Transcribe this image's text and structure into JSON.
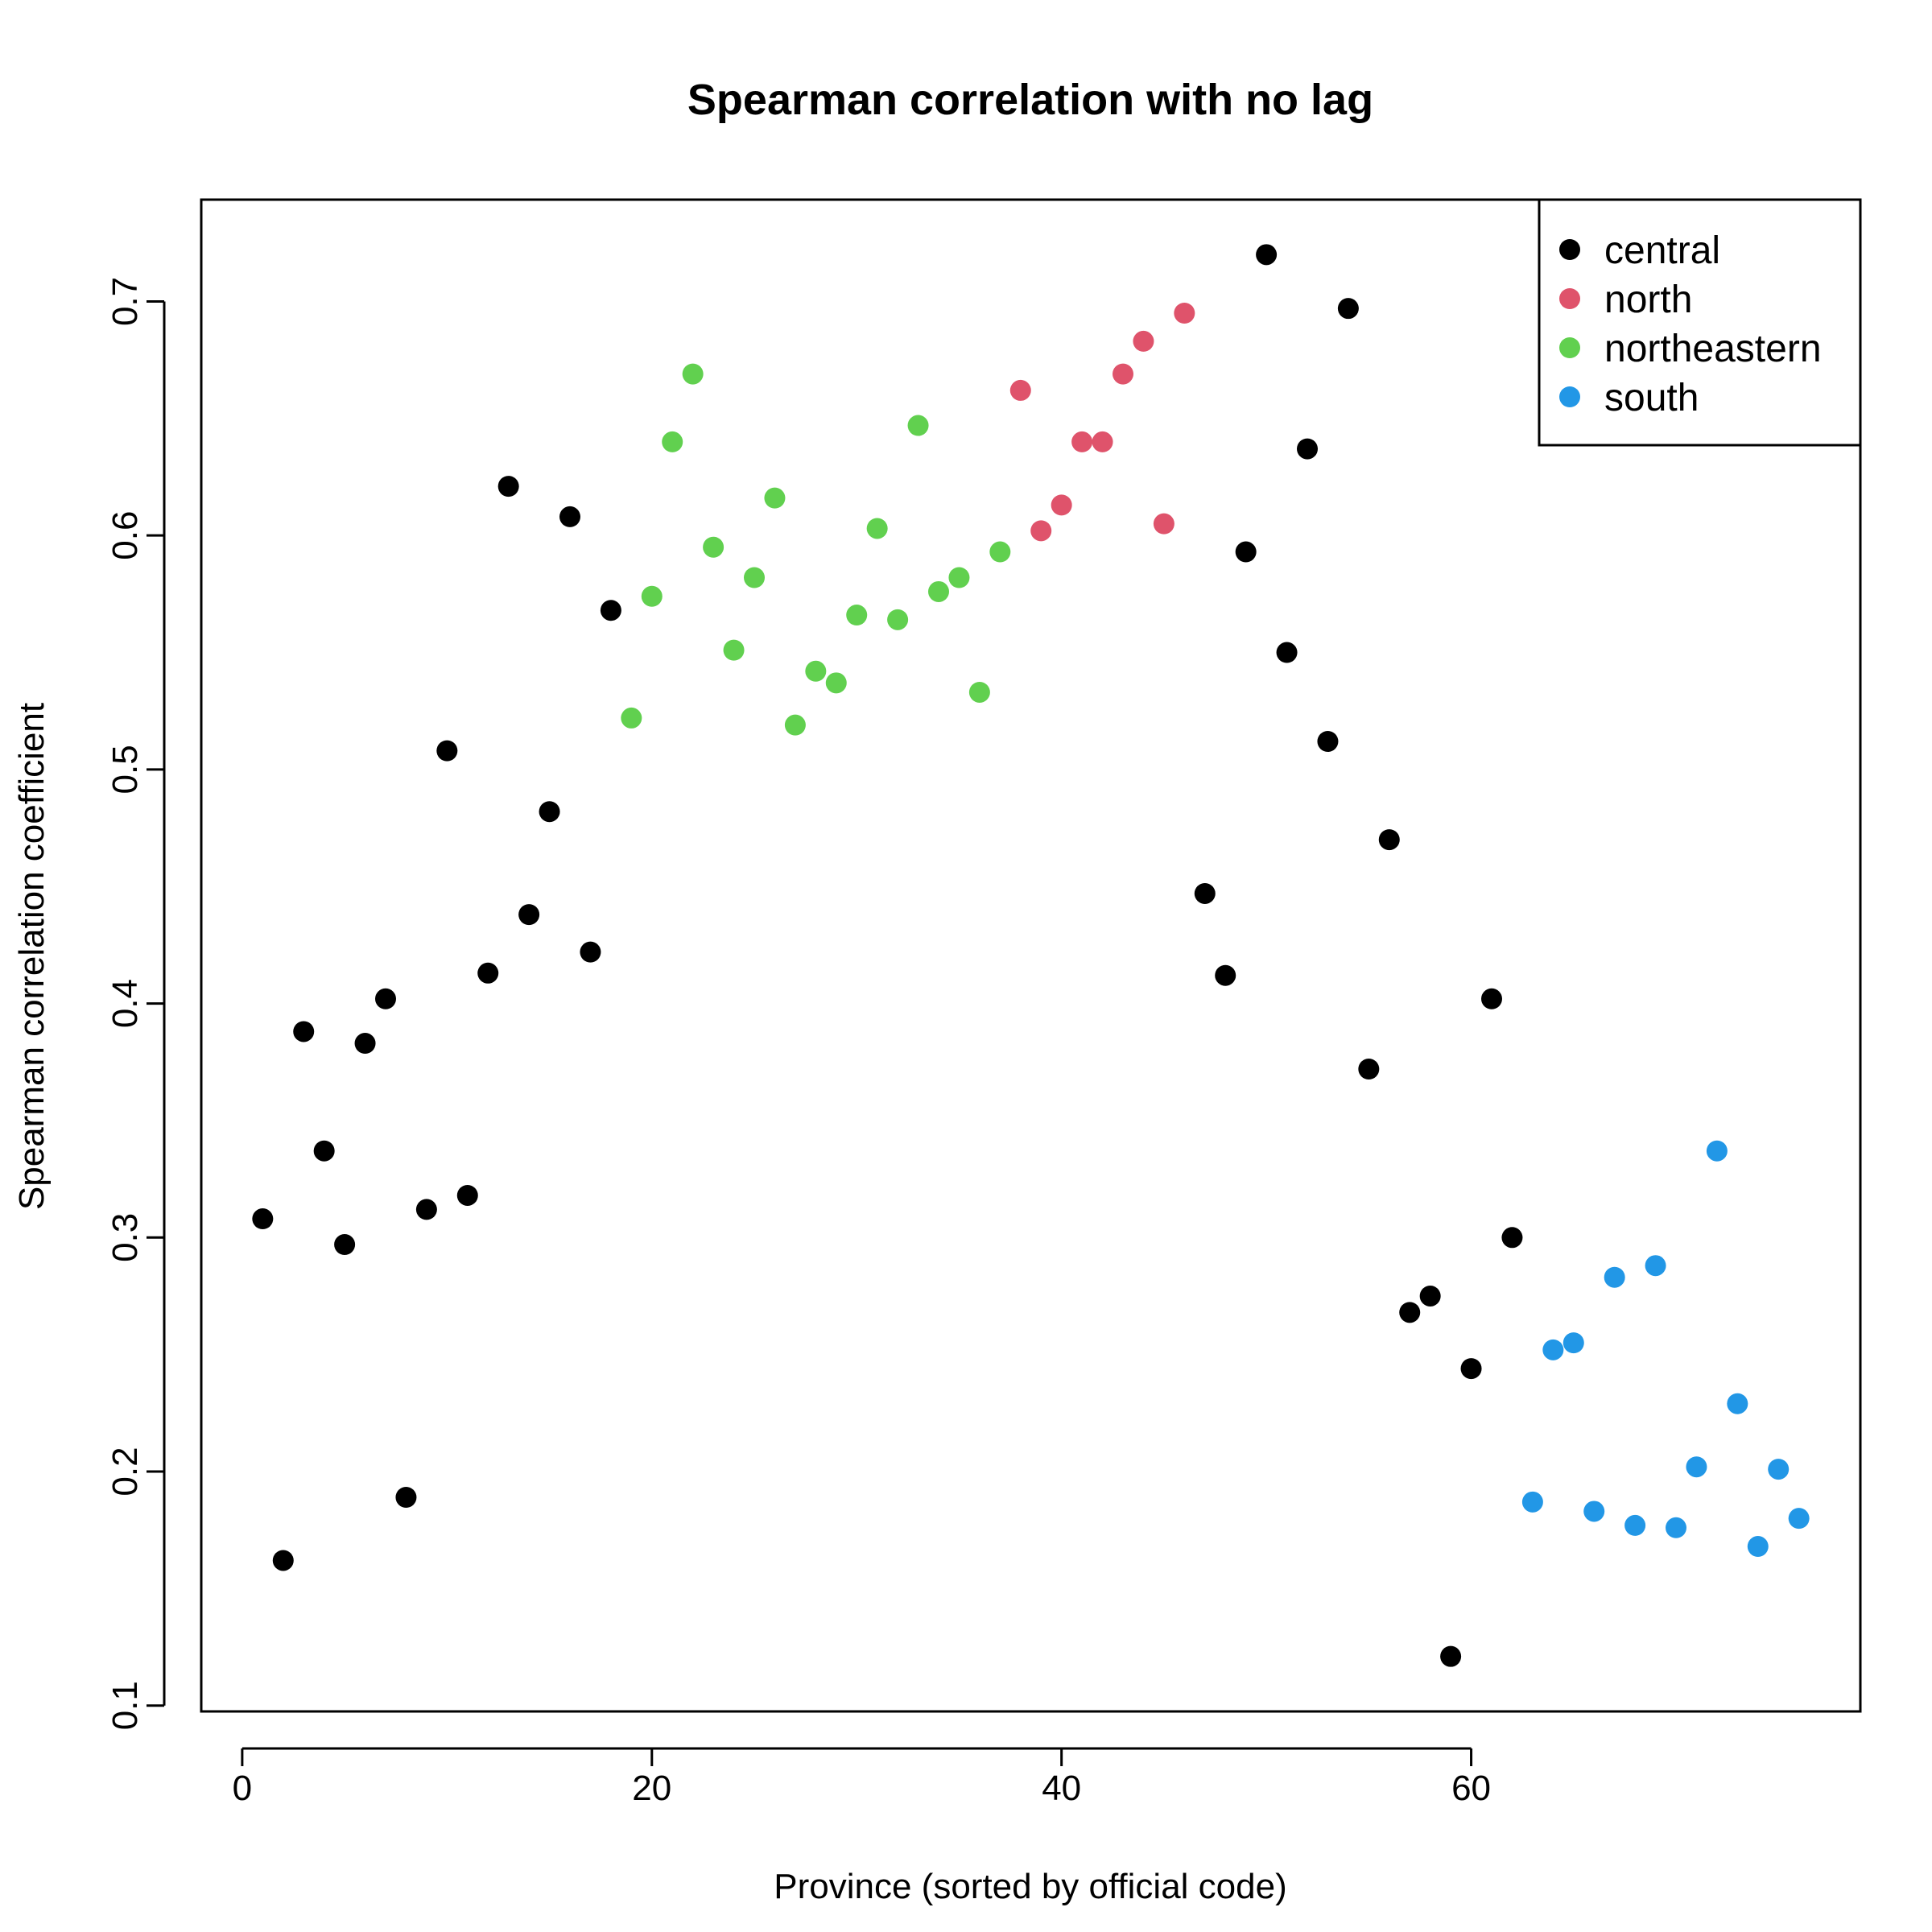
{
  "chart_data": {
    "type": "scatter",
    "title": "Spearman correlation with no lag",
    "xlabel": "Province (sorted by official code)",
    "ylabel": "Spearman correlation coefficient",
    "xlim": [
      -2,
      79
    ],
    "ylim": [
      0.0975,
      0.7435
    ],
    "x_ticks": [
      0,
      20,
      40,
      60
    ],
    "y_ticks": [
      0.1,
      0.2,
      0.3,
      0.4,
      0.5,
      0.6,
      0.7
    ],
    "grid": false,
    "legend_position": "top-right",
    "series": [
      {
        "name": "central",
        "color": "#000000",
        "points": [
          [
            1,
            0.308
          ],
          [
            2,
            0.162
          ],
          [
            3,
            0.388
          ],
          [
            4,
            0.337
          ],
          [
            5,
            0.297
          ],
          [
            6,
            0.383
          ],
          [
            7,
            0.402
          ],
          [
            8,
            0.189
          ],
          [
            9,
            0.312
          ],
          [
            10,
            0.508
          ],
          [
            11,
            0.318
          ],
          [
            12,
            0.413
          ],
          [
            13,
            0.621
          ],
          [
            14,
            0.438
          ],
          [
            15,
            0.482
          ],
          [
            16,
            0.608
          ],
          [
            17,
            0.422
          ],
          [
            18,
            0.568
          ],
          [
            47,
            0.447
          ],
          [
            48,
            0.412
          ],
          [
            49,
            0.593
          ],
          [
            50,
            0.72
          ],
          [
            51,
            0.55
          ],
          [
            52,
            0.637
          ],
          [
            53,
            0.512
          ],
          [
            54,
            0.697
          ],
          [
            55,
            0.372
          ],
          [
            56,
            0.47
          ],
          [
            57,
            0.268
          ],
          [
            58,
            0.275
          ],
          [
            59,
            0.121
          ],
          [
            60,
            0.244
          ],
          [
            61,
            0.402
          ],
          [
            62,
            0.3
          ]
        ]
      },
      {
        "name": "north",
        "color": "#DF536B",
        "points": [
          [
            38,
            0.662
          ],
          [
            39,
            0.602
          ],
          [
            40,
            0.613
          ],
          [
            41,
            0.64
          ],
          [
            42,
            0.64
          ],
          [
            43,
            0.669
          ],
          [
            44,
            0.683
          ],
          [
            45,
            0.605
          ],
          [
            46,
            0.695
          ]
        ]
      },
      {
        "name": "northeastern",
        "color": "#61D04F",
        "points": [
          [
            19,
            0.522
          ],
          [
            20,
            0.574
          ],
          [
            21,
            0.64
          ],
          [
            22,
            0.669
          ],
          [
            23,
            0.595
          ],
          [
            24,
            0.551
          ],
          [
            25,
            0.582
          ],
          [
            26,
            0.616
          ],
          [
            27,
            0.519
          ],
          [
            28,
            0.542
          ],
          [
            29,
            0.537
          ],
          [
            30,
            0.566
          ],
          [
            31,
            0.603
          ],
          [
            32,
            0.564
          ],
          [
            33,
            0.647
          ],
          [
            34,
            0.576
          ],
          [
            35,
            0.582
          ],
          [
            36,
            0.533
          ],
          [
            37,
            0.593
          ]
        ]
      },
      {
        "name": "south",
        "color": "#2297E6",
        "points": [
          [
            63,
            0.187
          ],
          [
            64,
            0.252
          ],
          [
            65,
            0.255
          ],
          [
            66,
            0.183
          ],
          [
            67,
            0.283
          ],
          [
            68,
            0.177
          ],
          [
            69,
            0.288
          ],
          [
            70,
            0.176
          ],
          [
            71,
            0.202
          ],
          [
            72,
            0.337
          ],
          [
            73,
            0.229
          ],
          [
            74,
            0.168
          ],
          [
            75,
            0.201
          ],
          [
            76,
            0.18
          ]
        ]
      }
    ]
  }
}
